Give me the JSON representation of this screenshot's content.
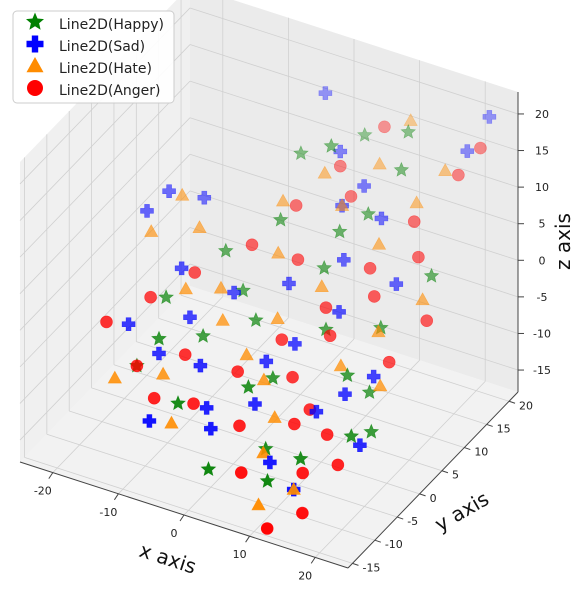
{
  "chart_data": {
    "type": "scatter",
    "xlabel": "x axis",
    "ylabel": "y axis",
    "zlabel": "z axis",
    "xlim": [
      -25,
      25
    ],
    "ylim": [
      -16,
      22
    ],
    "zlim": [
      -18,
      23
    ],
    "x_ticks": [
      "-20",
      "-10",
      "0",
      "10",
      "20"
    ],
    "y_ticks": [
      "-15",
      "-10",
      "-5",
      "0",
      "5",
      "10",
      "15",
      "20"
    ],
    "z_ticks": [
      "-15",
      "-10",
      "-5",
      "0",
      "5",
      "10",
      "15",
      "20"
    ],
    "grid": true,
    "legend_position": "top-left",
    "series": [
      {
        "name": "Line2D(Happy)",
        "marker": "star",
        "color": "#008000",
        "points": [
          [
            10,
            -12,
            -13
          ],
          [
            13,
            -9,
            -11
          ],
          [
            -5,
            -10,
            -8
          ],
          [
            3,
            -6,
            -6
          ],
          [
            -12,
            -4,
            -5
          ],
          [
            14,
            0,
            -5
          ],
          [
            8,
            4,
            -3
          ],
          [
            -6,
            6,
            -3
          ],
          [
            5,
            8,
            2
          ],
          [
            -3,
            10,
            5
          ],
          [
            18,
            -5,
            -9
          ],
          [
            4,
            -2,
            -7
          ],
          [
            -15,
            2,
            -4
          ],
          [
            9,
            12,
            8
          ],
          [
            12,
            15,
            13
          ],
          [
            2,
            14,
            14
          ],
          [
            -8,
            0,
            -6
          ],
          [
            15,
            6,
            -2
          ],
          [
            7,
            -8,
            -12
          ],
          [
            -2,
            3,
            -4
          ],
          [
            20,
            10,
            4
          ],
          [
            -10,
            8,
            0
          ],
          [
            11,
            18,
            16
          ],
          [
            1,
            -12,
            -14
          ],
          [
            16,
            2,
            -8
          ],
          [
            -4,
            16,
            10
          ],
          [
            6,
            10,
            6
          ],
          [
            19,
            -2,
            -10
          ],
          [
            -14,
            -6,
            -8
          ],
          [
            3,
            20,
            12
          ]
        ]
      },
      {
        "name": "Line2D(Sad)",
        "marker": "plus",
        "color": "#0000ff",
        "points": [
          [
            -8,
            -12,
            -10
          ],
          [
            -22,
            8,
            2
          ],
          [
            -20,
            10,
            4
          ],
          [
            -16,
            12,
            3
          ],
          [
            20,
            18,
            16
          ],
          [
            22,
            20,
            20
          ],
          [
            -5,
            -5,
            -6
          ],
          [
            -2,
            -8,
            -9
          ],
          [
            3,
            -2,
            -5
          ],
          [
            6,
            0,
            -3
          ],
          [
            10,
            4,
            0
          ],
          [
            8,
            8,
            4
          ],
          [
            5,
            12,
            8
          ],
          [
            2,
            16,
            12
          ],
          [
            -3,
            20,
            16
          ],
          [
            12,
            -4,
            -8
          ],
          [
            15,
            -2,
            -6
          ],
          [
            18,
            0,
            -4
          ],
          [
            -10,
            0,
            -4
          ],
          [
            -12,
            -4,
            -7
          ],
          [
            -14,
            4,
            -1
          ],
          [
            0,
            -10,
            -10
          ],
          [
            4,
            -6,
            -8
          ],
          [
            9,
            -10,
            -12
          ],
          [
            14,
            -12,
            -13
          ],
          [
            7,
            14,
            10
          ],
          [
            11,
            12,
            8
          ],
          [
            -6,
            4,
            -2
          ],
          [
            1,
            6,
            0
          ],
          [
            16,
            8,
            3
          ],
          [
            20,
            -6,
            -9
          ],
          [
            -18,
            -2,
            -6
          ]
        ]
      },
      {
        "name": "Line2D(Hate)",
        "marker": "triangle",
        "color": "#ff8c00",
        "points": [
          [
            10,
            -14,
            -15
          ],
          [
            14,
            -12,
            -13
          ],
          [
            8,
            -10,
            -11
          ],
          [
            -16,
            -8,
            -9
          ],
          [
            -20,
            6,
            1
          ],
          [
            -18,
            10,
            4
          ],
          [
            -12,
            2,
            -2
          ],
          [
            -5,
            0,
            -3
          ],
          [
            2,
            2,
            -2
          ],
          [
            6,
            6,
            1
          ],
          [
            12,
            10,
            6
          ],
          [
            15,
            14,
            10
          ],
          [
            18,
            16,
            14
          ],
          [
            4,
            -4,
            -6
          ],
          [
            0,
            -2,
            -5
          ],
          [
            -8,
            4,
            -2
          ],
          [
            -2,
            8,
            2
          ],
          [
            5,
            12,
            8
          ],
          [
            8,
            16,
            12
          ],
          [
            10,
            20,
            16
          ],
          [
            16,
            4,
            -1
          ],
          [
            19,
            0,
            -5
          ],
          [
            -10,
            -6,
            -8
          ],
          [
            -14,
            8,
            2
          ],
          [
            1,
            14,
            10
          ],
          [
            7,
            -6,
            -9
          ],
          [
            13,
            0,
            -4
          ],
          [
            -4,
            12,
            6
          ],
          [
            20,
            8,
            2
          ],
          [
            -6,
            -10,
            -11
          ]
        ]
      },
      {
        "name": "Line2D(Anger)",
        "marker": "circle",
        "color": "#ff0000",
        "points": [
          [
            12,
            -15,
            -17
          ],
          [
            16,
            -13,
            -15
          ],
          [
            6,
            -12,
            -13
          ],
          [
            14,
            -10,
            -12
          ],
          [
            18,
            -8,
            -11
          ],
          [
            10,
            -6,
            -9
          ],
          [
            -4,
            -8,
            -9
          ],
          [
            -8,
            -4,
            -6
          ],
          [
            0,
            -4,
            -6
          ],
          [
            4,
            0,
            -3
          ],
          [
            8,
            4,
            0
          ],
          [
            12,
            8,
            4
          ],
          [
            16,
            12,
            9
          ],
          [
            20,
            16,
            14
          ],
          [
            22,
            18,
            17
          ],
          [
            -20,
            -4,
            -5
          ],
          [
            -16,
            0,
            -3
          ],
          [
            -12,
            4,
            -1
          ],
          [
            -6,
            8,
            2
          ],
          [
            -2,
            12,
            6
          ],
          [
            2,
            16,
            10
          ],
          [
            6,
            20,
            14
          ],
          [
            10,
            2,
            -2
          ],
          [
            14,
            6,
            2
          ],
          [
            18,
            10,
            6
          ],
          [
            -10,
            -8,
            -10
          ],
          [
            3,
            -8,
            -10
          ],
          [
            7,
            -2,
            -6
          ],
          [
            11,
            -4,
            -8
          ],
          [
            15,
            -6,
            -9
          ],
          [
            19,
            2,
            -3
          ],
          [
            22,
            6,
            1
          ],
          [
            -14,
            -6,
            -8
          ],
          [
            1,
            8,
            2
          ],
          [
            5,
            14,
            8
          ]
        ]
      }
    ]
  }
}
